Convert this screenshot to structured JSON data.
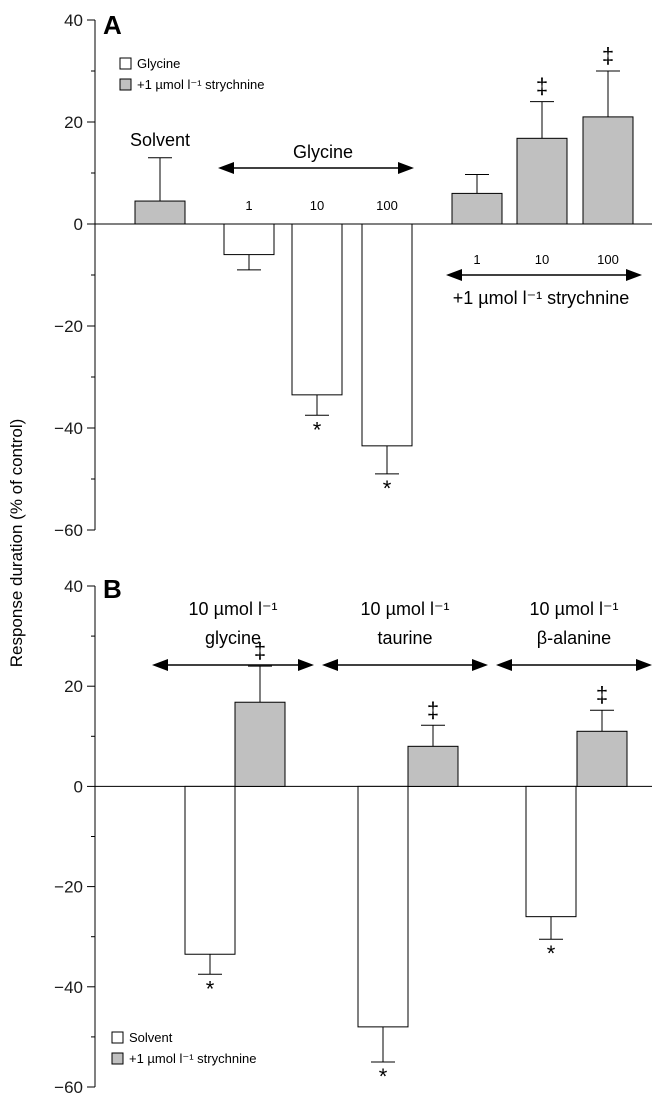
{
  "chart_data": [
    {
      "panel": "A",
      "type": "bar",
      "ylim": [
        -60,
        40
      ],
      "yticks": [
        "40",
        "20",
        "0",
        "−20",
        "−40",
        "−60"
      ],
      "ylabel": "Response duration (% of control)",
      "legend": [
        {
          "label": "Glycine",
          "color": "#ffffff"
        },
        {
          "label": "+1 µmol l⁻¹ strychnine",
          "color": "#c0c0c0"
        }
      ],
      "groups": {
        "solvent": "Solvent",
        "glycine": "Glycine",
        "strychnine": "+1 µmol l⁻¹ strychnine"
      },
      "bars": [
        {
          "group": "solvent",
          "dose": "",
          "value": 4.5,
          "error": 8.5,
          "fill": "#c0c0c0",
          "mark": ""
        },
        {
          "group": "glycine",
          "dose": "1",
          "value": -6,
          "error": 3,
          "fill": "#ffffff",
          "mark": ""
        },
        {
          "group": "glycine",
          "dose": "10",
          "value": -33.5,
          "error": 4,
          "fill": "#ffffff",
          "mark": "*"
        },
        {
          "group": "glycine",
          "dose": "100",
          "value": -43.5,
          "error": 5.5,
          "fill": "#ffffff",
          "mark": "*"
        },
        {
          "group": "strychnine",
          "dose": "1",
          "value": 6,
          "error": 3.7,
          "fill": "#c0c0c0",
          "mark": ""
        },
        {
          "group": "strychnine",
          "dose": "10",
          "value": 16.8,
          "error": 7.2,
          "fill": "#c0c0c0",
          "mark": "‡"
        },
        {
          "group": "strychnine",
          "dose": "100",
          "value": 21,
          "error": 9,
          "fill": "#c0c0c0",
          "mark": "‡"
        }
      ]
    },
    {
      "panel": "B",
      "type": "bar",
      "ylim": [
        -60,
        40
      ],
      "yticks": [
        "40",
        "20",
        "0",
        "−20",
        "−40",
        "−60"
      ],
      "legend": [
        {
          "label": "Solvent",
          "color": "#ffffff"
        },
        {
          "label": "+1 µmol l⁻¹ strychnine",
          "color": "#c0c0c0"
        }
      ],
      "groups": [
        {
          "line1": "10 µmol l⁻¹",
          "line2": "glycine"
        },
        {
          "line1": "10 µmol l⁻¹",
          "line2": "taurine"
        },
        {
          "line1": "10 µmol l⁻¹",
          "line2": "β-alanine"
        }
      ],
      "bars": [
        {
          "group": 0,
          "value": -33.5,
          "error": 4,
          "fill": "#ffffff",
          "mark": "*"
        },
        {
          "group": 0,
          "value": 16.8,
          "error": 7.2,
          "fill": "#c0c0c0",
          "mark": "‡"
        },
        {
          "group": 1,
          "value": -48,
          "error": 7,
          "fill": "#ffffff",
          "mark": "*"
        },
        {
          "group": 1,
          "value": 8,
          "error": 4.2,
          "fill": "#c0c0c0",
          "mark": "‡"
        },
        {
          "group": 2,
          "value": -26,
          "error": 4.5,
          "fill": "#ffffff",
          "mark": "*"
        },
        {
          "group": 2,
          "value": 11,
          "error": 4.2,
          "fill": "#c0c0c0",
          "mark": "‡"
        }
      ]
    }
  ]
}
